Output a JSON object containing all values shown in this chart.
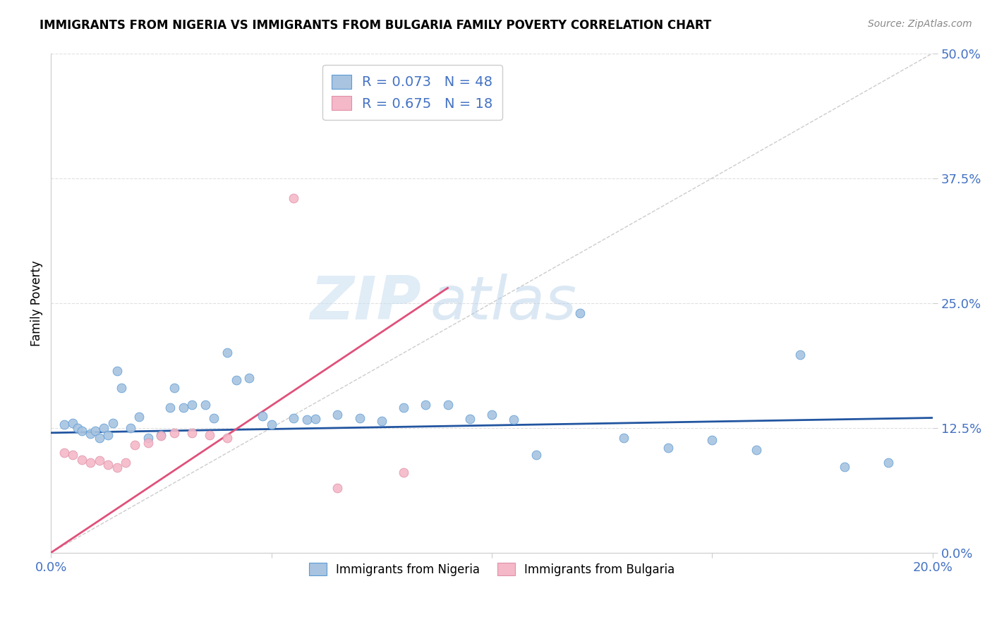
{
  "title": "IMMIGRANTS FROM NIGERIA VS IMMIGRANTS FROM BULGARIA FAMILY POVERTY CORRELATION CHART",
  "source": "Source: ZipAtlas.com",
  "ylabel": "Family Poverty",
  "ytick_labels": [
    "0.0%",
    "12.5%",
    "25.0%",
    "37.5%",
    "50.0%"
  ],
  "ytick_values": [
    0.0,
    0.125,
    0.25,
    0.375,
    0.5
  ],
  "xlim": [
    0.0,
    0.2
  ],
  "ylim": [
    0.0,
    0.5
  ],
  "nigeria_color": "#a8c4e0",
  "nigeria_edge_color": "#5b9bd5",
  "nigeria_line_color": "#2255a0",
  "bulgaria_color": "#f4b8c8",
  "bulgaria_edge_color": "#e090a8",
  "bulgaria_line_color": "#e0507a",
  "diag_line_color": "#cccccc",
  "nigeria_R": 0.073,
  "nigeria_N": 48,
  "bulgaria_R": 0.675,
  "bulgaria_N": 18,
  "legend_label_nigeria": "Immigrants from Nigeria",
  "legend_label_bulgaria": "Immigrants from Bulgaria",
  "watermark_zip": "ZIP",
  "watermark_atlas": "atlas",
  "tick_color": "#4472c4",
  "nigeria_x": [
    0.003,
    0.005,
    0.006,
    0.007,
    0.009,
    0.01,
    0.011,
    0.012,
    0.013,
    0.014,
    0.015,
    0.016,
    0.018,
    0.02,
    0.022,
    0.025,
    0.027,
    0.028,
    0.03,
    0.032,
    0.035,
    0.037,
    0.04,
    0.042,
    0.045,
    0.048,
    0.05,
    0.055,
    0.058,
    0.06,
    0.065,
    0.07,
    0.075,
    0.08,
    0.085,
    0.09,
    0.095,
    0.1,
    0.105,
    0.11,
    0.12,
    0.13,
    0.14,
    0.15,
    0.16,
    0.17,
    0.18,
    0.19
  ],
  "nigeria_y": [
    0.128,
    0.13,
    0.125,
    0.122,
    0.119,
    0.122,
    0.115,
    0.125,
    0.118,
    0.13,
    0.182,
    0.165,
    0.125,
    0.136,
    0.115,
    0.118,
    0.145,
    0.165,
    0.145,
    0.148,
    0.148,
    0.135,
    0.2,
    0.173,
    0.175,
    0.137,
    0.128,
    0.135,
    0.133,
    0.134,
    0.138,
    0.135,
    0.132,
    0.145,
    0.148,
    0.148,
    0.134,
    0.138,
    0.133,
    0.098,
    0.24,
    0.115,
    0.105,
    0.113,
    0.103,
    0.198,
    0.086,
    0.09
  ],
  "bulgaria_x": [
    0.003,
    0.005,
    0.007,
    0.009,
    0.011,
    0.013,
    0.015,
    0.017,
    0.019,
    0.022,
    0.025,
    0.028,
    0.032,
    0.036,
    0.04,
    0.055,
    0.065,
    0.08
  ],
  "bulgaria_y": [
    0.1,
    0.098,
    0.093,
    0.09,
    0.092,
    0.088,
    0.085,
    0.09,
    0.108,
    0.11,
    0.117,
    0.12,
    0.12,
    0.118,
    0.115,
    0.355,
    0.065,
    0.08
  ],
  "nigeria_line_x": [
    0.0,
    0.2
  ],
  "nigeria_line_y": [
    0.12,
    0.135
  ],
  "bulgaria_line_x": [
    0.0,
    0.09
  ],
  "bulgaria_line_y": [
    0.0,
    0.265
  ]
}
